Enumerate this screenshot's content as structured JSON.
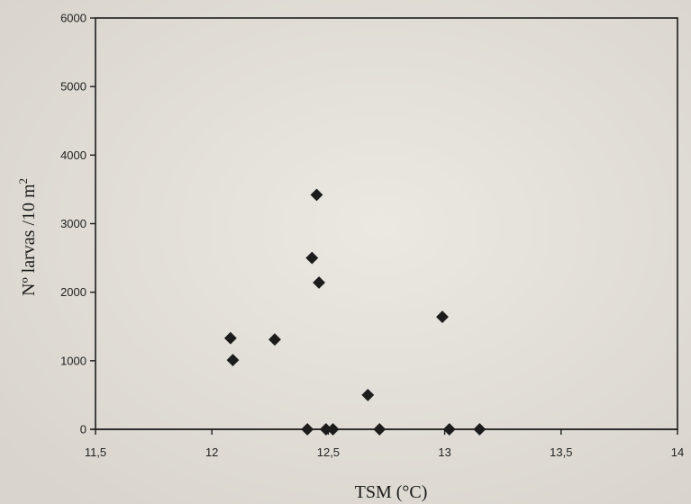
{
  "chart_data": {
    "type": "scatter",
    "title": "",
    "xlabel": "TSM (°C)",
    "ylabel_main": "Nº larvas /10 m",
    "ylabel_sup": "2",
    "xlim": [
      11.5,
      14
    ],
    "ylim": [
      0,
      6000
    ],
    "x_ticks": [
      11.5,
      12,
      12.5,
      13,
      13.5,
      14
    ],
    "x_tick_labels": [
      "11,5",
      "12",
      "12,5",
      "13",
      "13,5",
      "14"
    ],
    "y_ticks": [
      0,
      1000,
      2000,
      3000,
      4000,
      5000,
      6000
    ],
    "y_tick_labels": [
      "0",
      "1000",
      "2000",
      "3000",
      "4000",
      "5000",
      "6000"
    ],
    "grid": false,
    "legend": "none",
    "marker": "diamond",
    "marker_color": "#1c1c1c",
    "points": [
      {
        "x": 12.08,
        "y": 1330
      },
      {
        "x": 12.09,
        "y": 1010
      },
      {
        "x": 12.27,
        "y": 1310
      },
      {
        "x": 12.43,
        "y": 2500
      },
      {
        "x": 12.45,
        "y": 3420
      },
      {
        "x": 12.46,
        "y": 2140
      },
      {
        "x": 12.99,
        "y": 1640
      },
      {
        "x": 12.67,
        "y": 500
      },
      {
        "x": 12.41,
        "y": 0
      },
      {
        "x": 12.49,
        "y": 0
      },
      {
        "x": 12.52,
        "y": 0
      },
      {
        "x": 12.72,
        "y": 0
      },
      {
        "x": 13.02,
        "y": 0
      },
      {
        "x": 13.15,
        "y": 0
      }
    ]
  }
}
